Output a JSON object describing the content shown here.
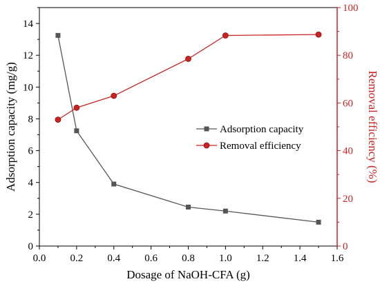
{
  "chart_data": {
    "type": "line",
    "title": "",
    "xlabel": "Dosage of NaOH-CFA (g)",
    "xlim": [
      0.0,
      1.6
    ],
    "xticks": [
      "0.0",
      "0.2",
      "0.4",
      "0.6",
      "0.8",
      "1.0",
      "1.2",
      "1.4",
      "1.6"
    ],
    "y_left": {
      "label": "Adsorption capacity (mg/g)",
      "lim": [
        0,
        15
      ],
      "ticks": [
        "0",
        "2",
        "4",
        "6",
        "8",
        "10",
        "12",
        "14"
      ],
      "color": "#000000"
    },
    "y_right": {
      "label": "Removal efficiency (%)",
      "lim": [
        0,
        100
      ],
      "ticks": [
        "0",
        "20",
        "40",
        "60",
        "80",
        "100"
      ],
      "color": "#cc2222"
    },
    "series": [
      {
        "name": "Adsorption capacity",
        "axis": "left",
        "marker": "square",
        "color": "#555555",
        "x": [
          0.1,
          0.2,
          0.4,
          0.8,
          1.0,
          1.5
        ],
        "y": [
          13.25,
          7.25,
          3.9,
          2.45,
          2.2,
          1.5
        ]
      },
      {
        "name": "Removal efficiency",
        "axis": "right",
        "marker": "circle",
        "color": "#cc2222",
        "x": [
          0.1,
          0.2,
          0.4,
          0.8,
          1.0,
          1.5
        ],
        "y": [
          53,
          58,
          63,
          78.5,
          88.3,
          88.7
        ]
      }
    ],
    "legend_position": "center-right",
    "grid": false
  }
}
